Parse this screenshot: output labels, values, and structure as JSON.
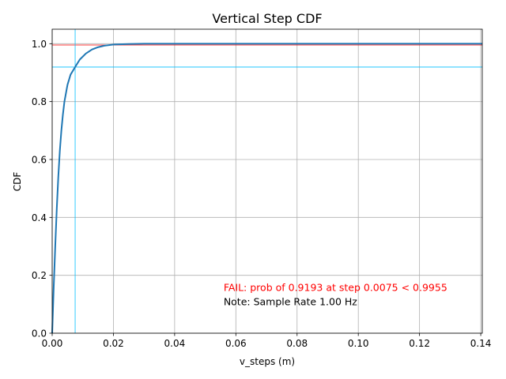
{
  "chart_data": {
    "type": "line",
    "title": "Vertical Step CDF",
    "xlabel": "v_steps (m)",
    "ylabel": "CDF",
    "xlim": [
      0,
      0.1405
    ],
    "ylim": [
      0,
      1.05
    ],
    "x_ticks": [
      0.0,
      0.02,
      0.04,
      0.06,
      0.08,
      0.1,
      0.12,
      0.14
    ],
    "x_tick_labels": [
      "0.00",
      "0.02",
      "0.04",
      "0.06",
      "0.08",
      "0.10",
      "0.12",
      "0.14"
    ],
    "y_ticks": [
      0.0,
      0.2,
      0.4,
      0.6,
      0.8,
      1.0
    ],
    "y_tick_labels": [
      "0.0",
      "0.2",
      "0.4",
      "0.6",
      "0.8",
      "1.0"
    ],
    "grid": true,
    "series": [
      {
        "name": "CDF",
        "color": "#1f77b4",
        "x": [
          0,
          0.0005,
          0.001,
          0.0015,
          0.002,
          0.0025,
          0.003,
          0.0035,
          0.004,
          0.005,
          0.006,
          0.0075,
          0.009,
          0.011,
          0.013,
          0.015,
          0.017,
          0.02,
          0.025,
          0.03,
          0.05,
          0.1,
          0.1405
        ],
        "y": [
          0.0,
          0.16,
          0.3,
          0.43,
          0.54,
          0.63,
          0.7,
          0.755,
          0.8,
          0.858,
          0.893,
          0.9193,
          0.945,
          0.966,
          0.98,
          0.988,
          0.993,
          0.997,
          0.999,
          1.0,
          1.0,
          1.0,
          1.0
        ]
      }
    ],
    "reference_lines": [
      {
        "orientation": "horizontal",
        "value": 0.9955,
        "color": "#ff0000"
      },
      {
        "orientation": "horizontal",
        "value": 0.9193,
        "color": "#00bfff"
      },
      {
        "orientation": "vertical",
        "value": 0.0075,
        "color": "#00bfff"
      }
    ],
    "annotations": [
      {
        "text": "FAIL: prob of 0.9193 at step 0.0075 < 0.9955",
        "color": "#ff0000",
        "x": 0.056,
        "y": 0.16
      },
      {
        "text": "Note: Sample Rate 1.00 Hz",
        "color": "#000000",
        "x": 0.056,
        "y": 0.11
      }
    ]
  }
}
